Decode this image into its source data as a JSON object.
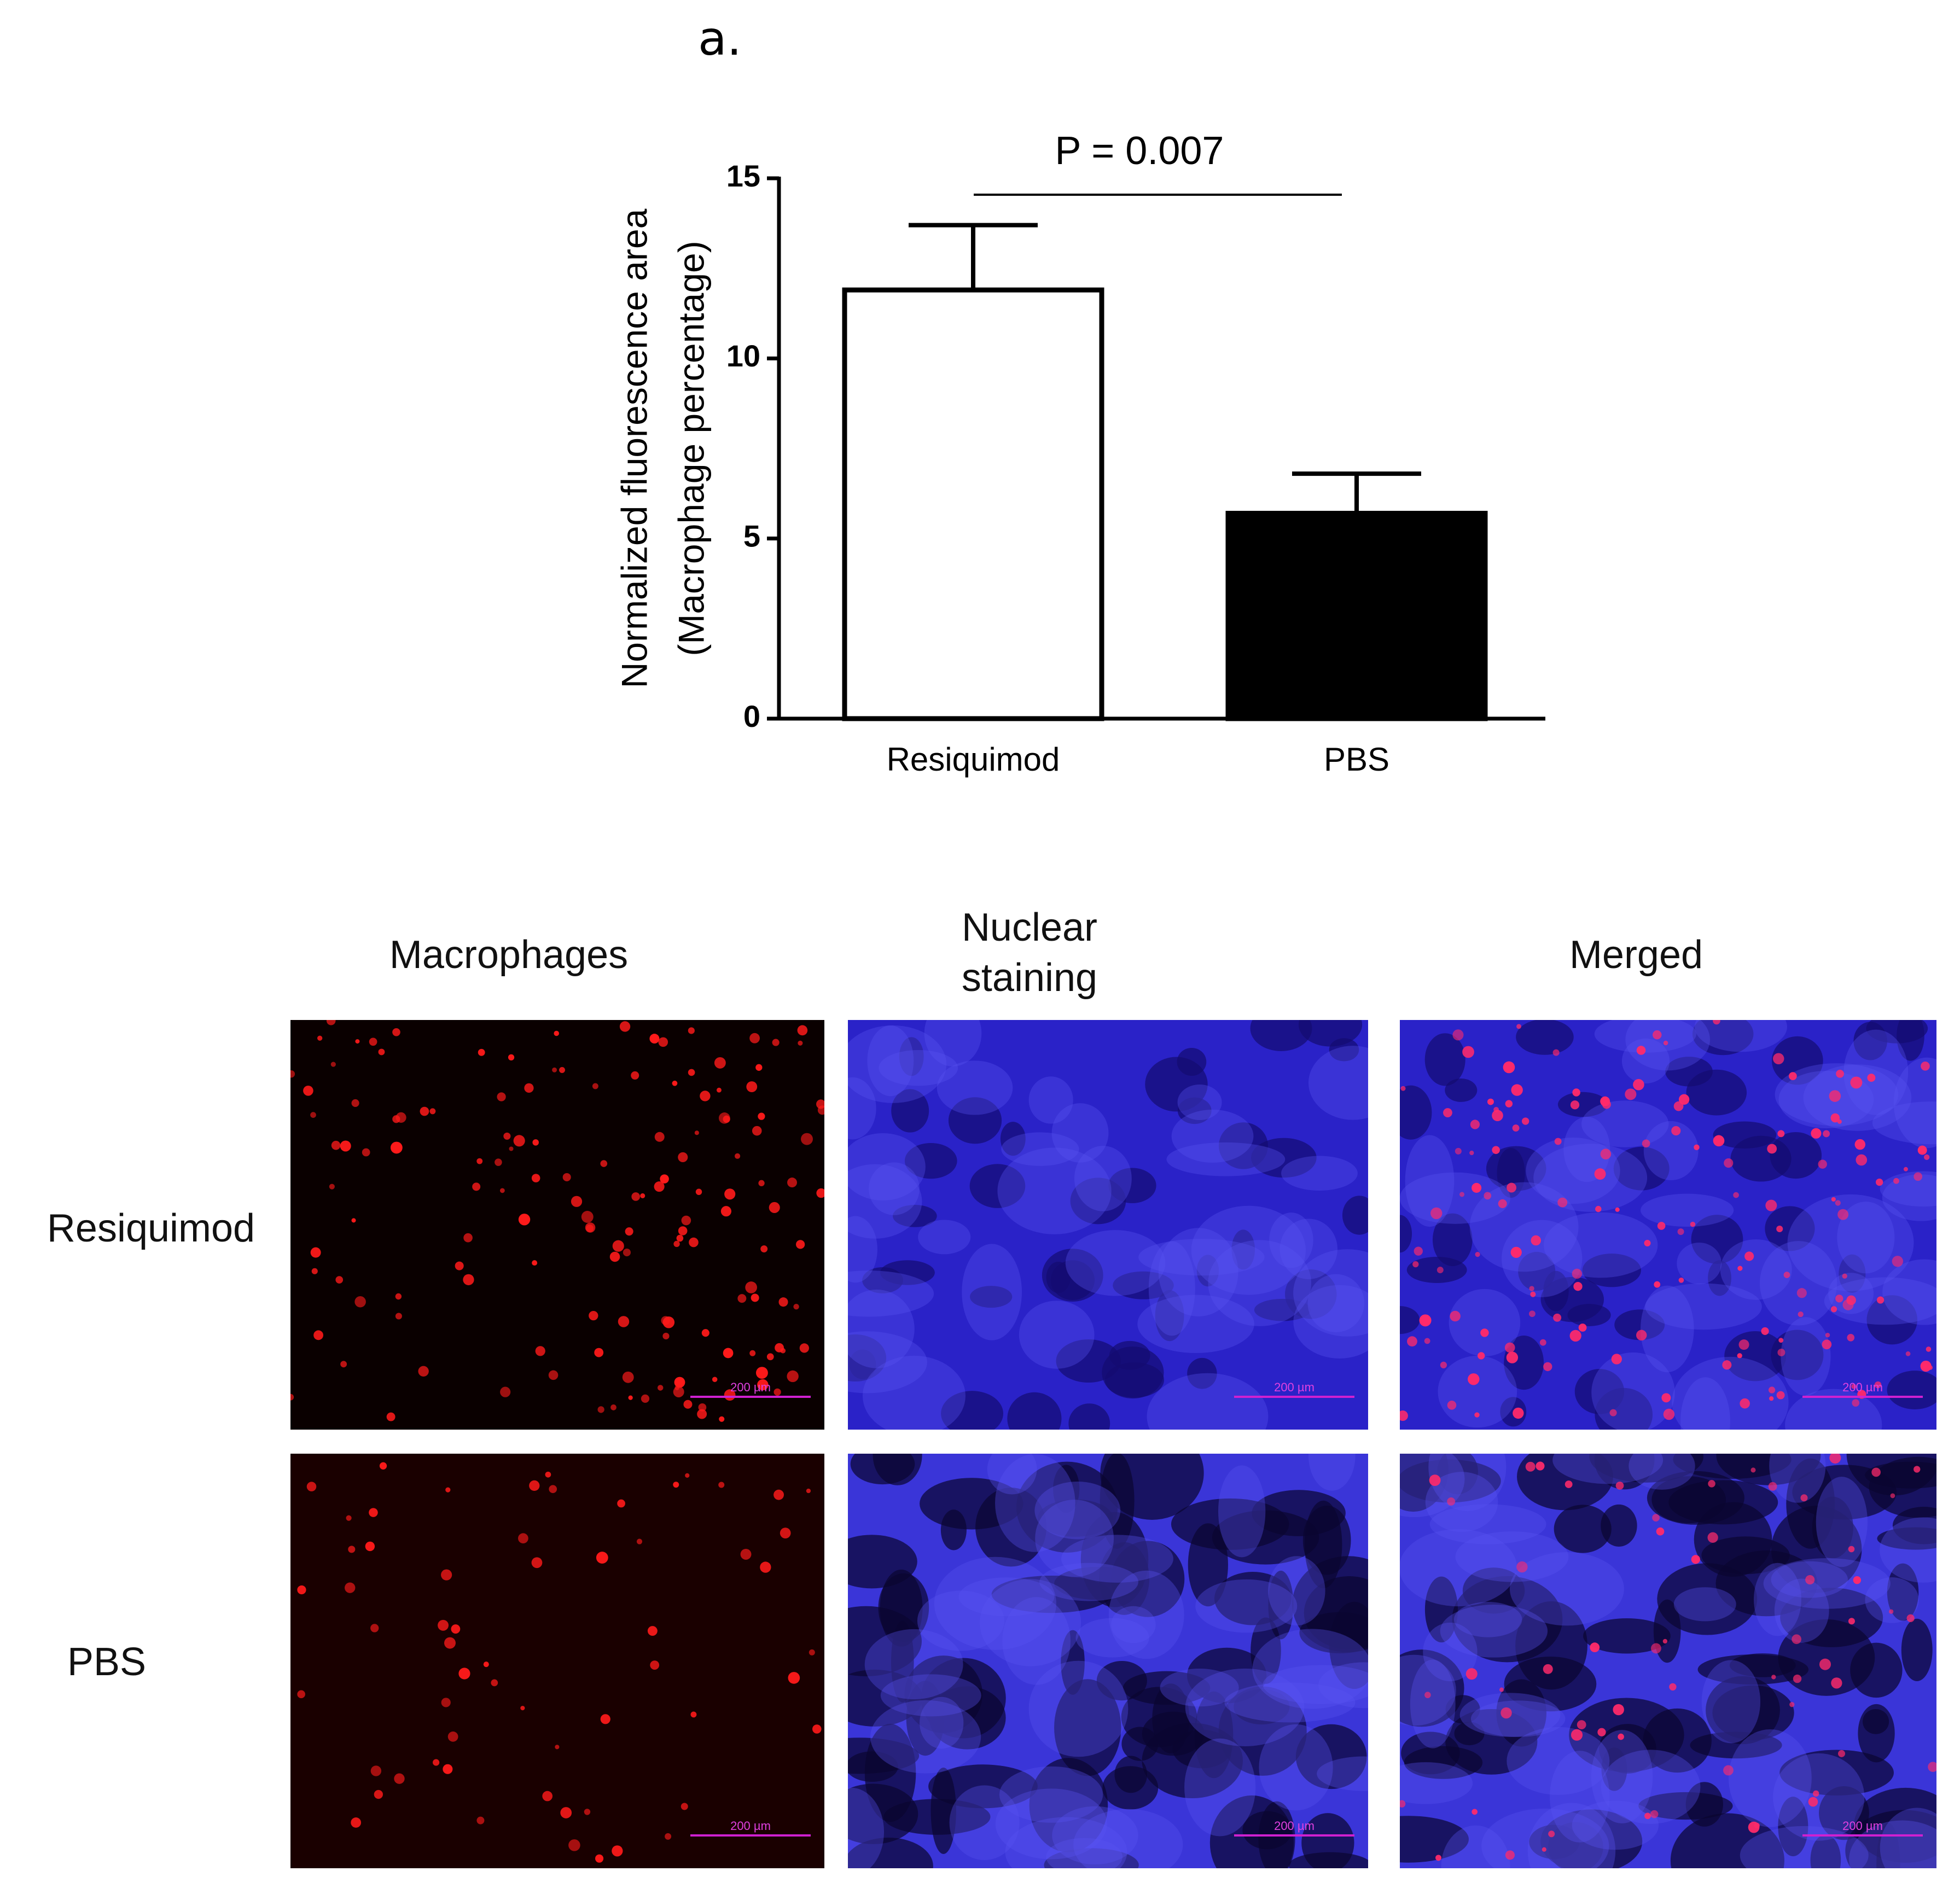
{
  "chart_data": {
    "type": "bar",
    "title": "a.",
    "y_label": [
      "Normalized fluorescence area",
      "(Macrophage percentage)"
    ],
    "categories": [
      "Resiquimod",
      "PBS"
    ],
    "values": [
      11.9,
      5.7
    ],
    "errors": [
      1.8,
      1.1
    ],
    "colors": [
      "#ffffff",
      "#000000"
    ],
    "ylim": [
      0,
      15
    ],
    "yticks": [
      0,
      5,
      10,
      15
    ],
    "annotation": "P = 0.007"
  },
  "image_grid": {
    "columns": [
      "Macrophages",
      "Nuclear staining",
      "Merged"
    ],
    "rows": [
      "Resiquimod",
      "PBS"
    ],
    "scale_bar": "200 µm"
  }
}
